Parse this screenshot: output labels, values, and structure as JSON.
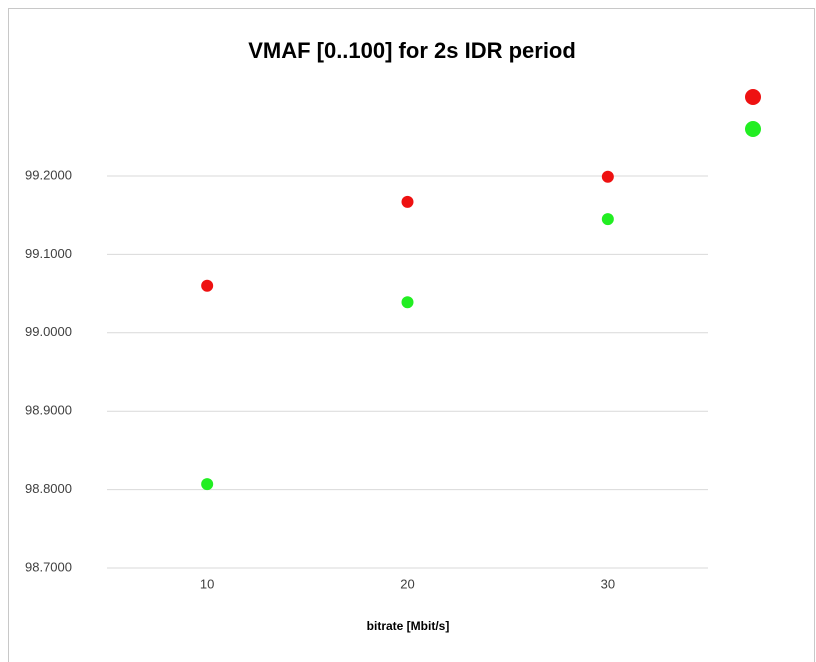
{
  "chart_data": {
    "type": "scatter",
    "title": "VMAF [0..100] for 2s IDR period",
    "x_label": "bitrate [Mbit/s]",
    "xlim": [
      5,
      35
    ],
    "xticks": [
      10,
      20,
      30
    ],
    "ylim": [
      98.7,
      99.2
    ],
    "yticks": [
      {
        "value": 98.7,
        "label": "98.7000"
      },
      {
        "value": 98.8,
        "label": "98.8000"
      },
      {
        "value": 98.9,
        "label": "98.9000"
      },
      {
        "value": 99.0,
        "label": "99.0000"
      },
      {
        "value": 99.1,
        "label": "99.1000"
      },
      {
        "value": 99.2,
        "label": "99.2000"
      }
    ],
    "grid": true,
    "legend": "right",
    "series": [
      {
        "color": "#ee1111",
        "x": [
          10,
          20,
          30
        ],
        "values": [
          99.06,
          99.167,
          99.199
        ]
      },
      {
        "color": "#22ee22",
        "x": [
          10,
          20,
          30
        ],
        "values": [
          98.807,
          99.039,
          99.145
        ]
      }
    ]
  }
}
